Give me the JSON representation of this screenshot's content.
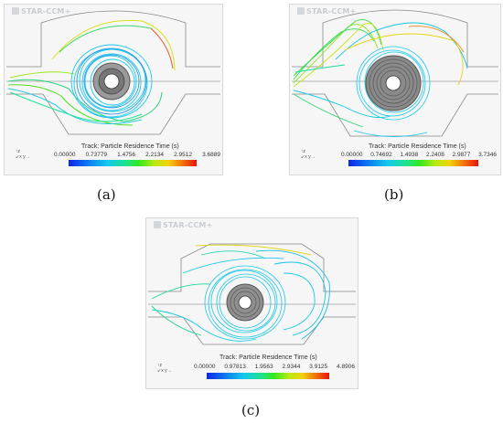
{
  "logo_text": "STAR-CCM+",
  "colorbar_colors": [
    "#0b26e8",
    "#0d7af0",
    "#13c8ee",
    "#1ee38a",
    "#35e71c",
    "#b9ea13",
    "#f2d20e",
    "#f27b0b",
    "#e81309"
  ],
  "panels": [
    {
      "caption": "(a)",
      "colorbar_title": "Track: Particle Residence Time (s)",
      "ticks": [
        "0.00000",
        "0.73779",
        "1.4756",
        "2.2134",
        "2.9512",
        "3.6889"
      ]
    },
    {
      "caption": "(b)",
      "colorbar_title": "Track: Particle Residence Time (s)",
      "ticks": [
        "0.00000",
        "0.74692",
        "1.4938",
        "2.2408",
        "2.9877",
        "3.7346"
      ]
    },
    {
      "caption": "(c)",
      "colorbar_title": "Track: Particle Residence Time (s)",
      "ticks": [
        "0.00000",
        "0.97813",
        "1.9563",
        "2.9344",
        "3.9125",
        "4.8906"
      ]
    }
  ]
}
